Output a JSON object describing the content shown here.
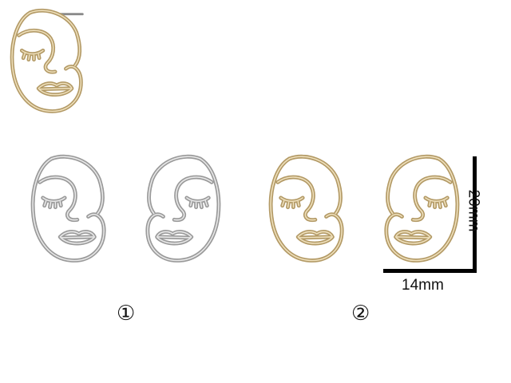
{
  "colors": {
    "silver_stroke": "#9a9a9a",
    "silver_highlight": "#e8e8e8",
    "gold_stroke": "#b39a66",
    "gold_highlight": "#efe0bc",
    "background": "#ffffff",
    "text": "#111111"
  },
  "options": [
    {
      "label": "①",
      "finish": "silver"
    },
    {
      "label": "②",
      "finish": "gold"
    }
  ],
  "dimensions": {
    "width_label": "14mm",
    "height_label": "20mm"
  }
}
